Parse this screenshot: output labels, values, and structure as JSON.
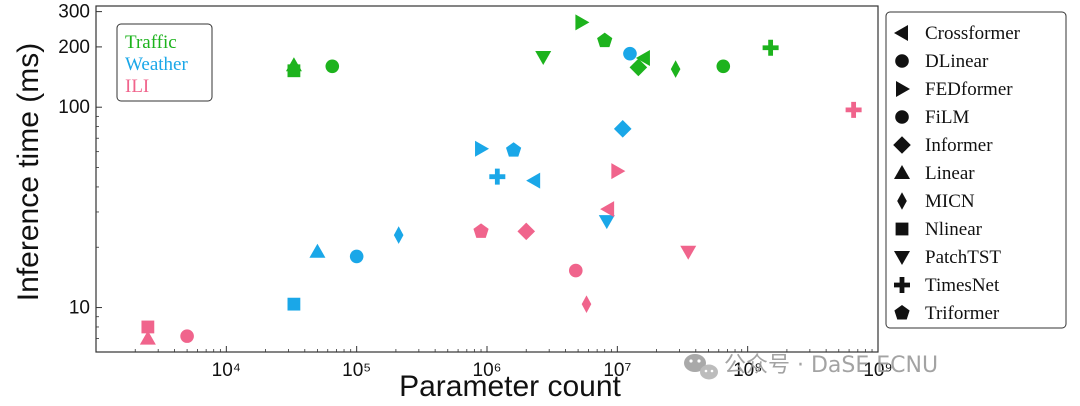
{
  "chart_data": {
    "type": "scatter",
    "xlabel": "Parameter count",
    "ylabel": "Inference time (ms)",
    "x_scale": "log",
    "y_scale": "log",
    "xlim": [
      1000,
      1000000000
    ],
    "ylim": [
      6,
      320
    ],
    "x_ticks": [
      {
        "value": 10000,
        "label": "10⁴"
      },
      {
        "value": 100000,
        "label": "10⁵"
      },
      {
        "value": 1000000,
        "label": "10⁶"
      },
      {
        "value": 10000000,
        "label": "10⁷"
      },
      {
        "value": 100000000,
        "label": "10⁸"
      },
      {
        "value": 1000000000,
        "label": "10⁹"
      }
    ],
    "y_ticks": [
      {
        "value": 10,
        "label": "10"
      },
      {
        "value": 100,
        "label": "100"
      },
      {
        "value": 200,
        "label": "200"
      },
      {
        "value": 300,
        "label": "300"
      }
    ],
    "datasets": [
      {
        "name": "Traffic",
        "color": "#1db31d"
      },
      {
        "name": "Weather",
        "color": "#1aa7e8"
      },
      {
        "name": "ILI",
        "color": "#f0648c"
      }
    ],
    "models": [
      {
        "name": "Crossformer",
        "marker": "triangle-left"
      },
      {
        "name": "DLinear",
        "marker": "circle"
      },
      {
        "name": "FEDformer",
        "marker": "triangle-right"
      },
      {
        "name": "FiLM",
        "marker": "circle"
      },
      {
        "name": "Informer",
        "marker": "diamond"
      },
      {
        "name": "Linear",
        "marker": "triangle-up"
      },
      {
        "name": "MICN",
        "marker": "thin-diamond"
      },
      {
        "name": "Nlinear",
        "marker": "square"
      },
      {
        "name": "PatchTST",
        "marker": "triangle-down"
      },
      {
        "name": "TimesNet",
        "marker": "plus"
      },
      {
        "name": "Triformer",
        "marker": "pentagon"
      }
    ],
    "points": [
      {
        "dataset": "Traffic",
        "model": "Crossformer",
        "x": 16000000,
        "y": 176
      },
      {
        "dataset": "Traffic",
        "model": "DLinear",
        "x": 65000000,
        "y": 160
      },
      {
        "dataset": "Traffic",
        "model": "FEDformer",
        "x": 5300000,
        "y": 265
      },
      {
        "dataset": "Traffic",
        "model": "FiLM",
        "x": 65000,
        "y": 160
      },
      {
        "dataset": "Traffic",
        "model": "Informer",
        "x": 14500000,
        "y": 158
      },
      {
        "dataset": "Traffic",
        "model": "Linear",
        "x": 33000,
        "y": 162
      },
      {
        "dataset": "Traffic",
        "model": "MICN",
        "x": 28000000,
        "y": 155
      },
      {
        "dataset": "Traffic",
        "model": "Nlinear",
        "x": 33000,
        "y": 152
      },
      {
        "dataset": "Traffic",
        "model": "PatchTST",
        "x": 2700000,
        "y": 178
      },
      {
        "dataset": "Traffic",
        "model": "TimesNet",
        "x": 150000000,
        "y": 198
      },
      {
        "dataset": "Traffic",
        "model": "Triformer",
        "x": 8000000,
        "y": 215
      },
      {
        "dataset": "Weather",
        "model": "Crossformer",
        "x": 2300000,
        "y": 43
      },
      {
        "dataset": "Weather",
        "model": "DLinear",
        "x": 12500000,
        "y": 185
      },
      {
        "dataset": "Weather",
        "model": "FEDformer",
        "x": 900000,
        "y": 62
      },
      {
        "dataset": "Weather",
        "model": "FiLM",
        "x": 100000,
        "y": 18
      },
      {
        "dataset": "Weather",
        "model": "Informer",
        "x": 11000000,
        "y": 78
      },
      {
        "dataset": "Weather",
        "model": "Linear",
        "x": 50000,
        "y": 19
      },
      {
        "dataset": "Weather",
        "model": "MICN",
        "x": 210000,
        "y": 23
      },
      {
        "dataset": "Weather",
        "model": "Nlinear",
        "x": 33000,
        "y": 10.4
      },
      {
        "dataset": "Weather",
        "model": "PatchTST",
        "x": 8300000,
        "y": 27
      },
      {
        "dataset": "Weather",
        "model": "TimesNet",
        "x": 1200000,
        "y": 45
      },
      {
        "dataset": "Weather",
        "model": "Triformer",
        "x": 1600000,
        "y": 61
      },
      {
        "dataset": "ILI",
        "model": "Crossformer",
        "x": 8500000,
        "y": 31
      },
      {
        "dataset": "ILI",
        "model": "DLinear",
        "x": 4800000,
        "y": 15.3
      },
      {
        "dataset": "ILI",
        "model": "FEDformer",
        "x": 10000000,
        "y": 48
      },
      {
        "dataset": "ILI",
        "model": "FiLM",
        "x": 5000,
        "y": 7.2
      },
      {
        "dataset": "ILI",
        "model": "Informer",
        "x": 2000000,
        "y": 24
      },
      {
        "dataset": "ILI",
        "model": "Linear",
        "x": 2500,
        "y": 7.0
      },
      {
        "dataset": "ILI",
        "model": "MICN",
        "x": 5800000,
        "y": 10.4
      },
      {
        "dataset": "ILI",
        "model": "Nlinear",
        "x": 2500,
        "y": 8.0
      },
      {
        "dataset": "ILI",
        "model": "PatchTST",
        "x": 35000000,
        "y": 19
      },
      {
        "dataset": "ILI",
        "model": "TimesNet",
        "x": 650000000,
        "y": 97
      },
      {
        "dataset": "ILI",
        "model": "Triformer",
        "x": 900000,
        "y": 24
      }
    ]
  },
  "watermark": {
    "icon": "wechat-icon",
    "text": "公众号 · DaSE ECNU",
    "color": "#9a9a9a"
  }
}
